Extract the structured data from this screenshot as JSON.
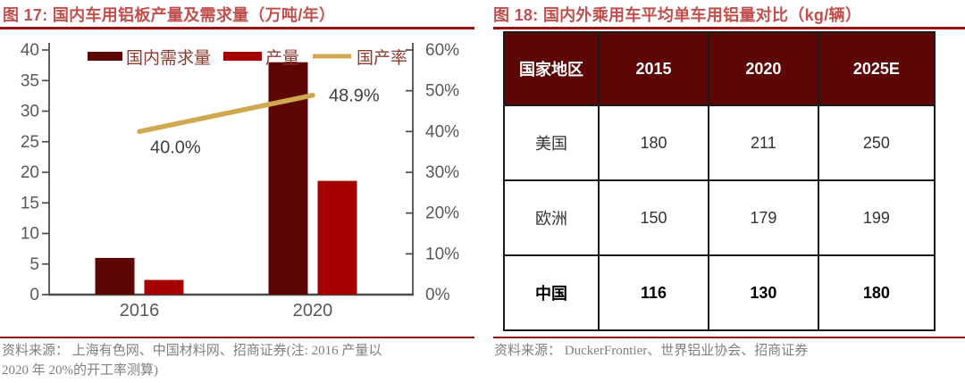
{
  "figures": {
    "fig17": {
      "title": "图 17:  国内车用铝板产量及需求量（万吨/年）",
      "source": "资料来源： 上海有色网、中国材料网、招商证券(注: 2016 产量以\n2020 年 20%的开工率测算)"
    },
    "fig18": {
      "title": "图 18:  国内外乘用车平均单车用铝量对比（kg/辆）",
      "source": "资料来源： DuckerFrontier、世界铝业协会、招商证券"
    }
  },
  "chart_data": [
    {
      "type": "bar+line",
      "title": "国内车用铝板产量及需求量（万吨/年）",
      "categories": [
        "2016",
        "2020"
      ],
      "series": [
        {
          "name": "国内需求量",
          "type": "bar",
          "axis": "left",
          "color": "#5c0606",
          "values": [
            6,
            38
          ]
        },
        {
          "name": "产量",
          "type": "bar",
          "axis": "left",
          "color": "#a40000",
          "values": [
            2.4,
            18.6
          ]
        },
        {
          "name": "国产率",
          "type": "line",
          "axis": "right",
          "color": "#d0a850",
          "values": [
            40.0,
            48.9
          ],
          "labels": [
            "40.0%",
            "48.9%"
          ]
        }
      ],
      "left_axis": {
        "min": 0,
        "max": 40,
        "step": 5
      },
      "right_axis": {
        "min": 0,
        "max": 60,
        "step": 10,
        "suffix": "%"
      },
      "legend_position": "top-inside",
      "grid": false
    },
    {
      "type": "table",
      "title": "国内外乘用车平均单车用铝量对比（kg/辆）",
      "headers": [
        "国家地区",
        "2015",
        "2020",
        "2025E"
      ],
      "rows": [
        [
          "美国",
          "180",
          "211",
          "250"
        ],
        [
          "欧洲",
          "150",
          "179",
          "199"
        ],
        [
          "中国",
          "116",
          "130",
          "180"
        ]
      ],
      "bold_row": "中国"
    }
  ],
  "colors": {
    "title_text": "#c0504d",
    "rule_red": "#9a0f0f",
    "divider_red": "#8b0f0f",
    "demand_bar": "#5c0606",
    "production_bar": "#a40000",
    "rate_line": "#d0a850",
    "axis_text": "#595959",
    "legend_text": "#8a3b32",
    "source_text": "#7f7f7f",
    "table_header_bg": "#5c0606",
    "table_border": "#1a1a1a"
  }
}
